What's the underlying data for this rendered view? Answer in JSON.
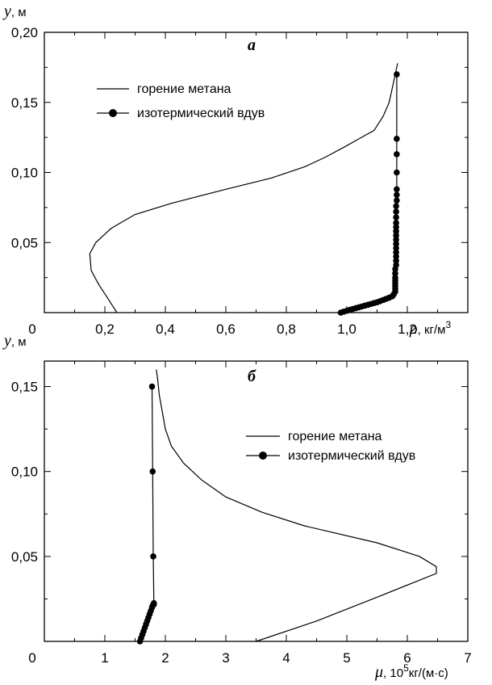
{
  "chart_data": [
    {
      "type": "line",
      "panel_label": "а",
      "ylabel_symbol": "y",
      "ylabel_unit": ", м",
      "xlabel_symbol": "ρ",
      "xlabel_unit": ", кг/м",
      "xlabel_unit_sup": "3",
      "xlim": [
        0,
        1.4
      ],
      "ylim": [
        0,
        0.2
      ],
      "x_ticks": [
        "0",
        "0,2",
        "0,4",
        "0,6",
        "0,8",
        "1,0",
        "1,2"
      ],
      "x_tick_values": [
        0,
        0.2,
        0.4,
        0.6,
        0.8,
        1.0,
        1.2
      ],
      "y_ticks": [
        "0,05",
        "0,10",
        "0,15",
        "0,20"
      ],
      "y_tick_values": [
        0.05,
        0.1,
        0.15,
        0.2
      ],
      "legend": "top-left",
      "series": [
        {
          "name": "горение метана",
          "marker": "none",
          "color": "#000000",
          "x": [
            0.24,
            0.21,
            0.18,
            0.155,
            0.15,
            0.17,
            0.22,
            0.3,
            0.42,
            0.6,
            0.75,
            0.86,
            0.93,
            0.99,
            1.04,
            1.09,
            1.12,
            1.14,
            1.15,
            1.16,
            1.168
          ],
          "y": [
            0.0,
            0.01,
            0.02,
            0.03,
            0.042,
            0.05,
            0.06,
            0.07,
            0.078,
            0.088,
            0.096,
            0.104,
            0.111,
            0.118,
            0.124,
            0.13,
            0.14,
            0.15,
            0.16,
            0.17,
            0.178
          ]
        },
        {
          "name": "изотермический вдув",
          "marker": "circle",
          "color": "#000000",
          "x": [
            0.98,
            0.99,
            1.0,
            1.01,
            1.02,
            1.03,
            1.04,
            1.05,
            1.06,
            1.07,
            1.08,
            1.09,
            1.1,
            1.11,
            1.12,
            1.13,
            1.14,
            1.15,
            1.155,
            1.16,
            1.16,
            1.16,
            1.16,
            1.16,
            1.16,
            1.16,
            1.16,
            1.163,
            1.163,
            1.163,
            1.163,
            1.163,
            1.163,
            1.163,
            1.163,
            1.163,
            1.163,
            1.163,
            1.163,
            1.163,
            1.163,
            1.165,
            1.165,
            1.165,
            1.165,
            1.165,
            1.165,
            1.165
          ],
          "y": [
            0.0,
            0.0007,
            0.0013,
            0.002,
            0.0026,
            0.0032,
            0.0038,
            0.0044,
            0.005,
            0.0056,
            0.0062,
            0.0068,
            0.0074,
            0.0082,
            0.009,
            0.0098,
            0.0106,
            0.0116,
            0.013,
            0.015,
            0.017,
            0.019,
            0.021,
            0.023,
            0.025,
            0.028,
            0.031,
            0.034,
            0.037,
            0.04,
            0.043,
            0.046,
            0.049,
            0.052,
            0.055,
            0.058,
            0.061,
            0.064,
            0.068,
            0.072,
            0.076,
            0.08,
            0.084,
            0.088,
            0.1,
            0.113,
            0.124,
            0.17
          ]
        }
      ]
    },
    {
      "type": "line",
      "panel_label": "б",
      "ylabel_symbol": "y",
      "ylabel_unit": ", м",
      "xlabel_symbol": "μ",
      "xlabel_unit": ", 10",
      "xlabel_unit_sup": "5",
      "xlabel_unit_tail": "кг/(м·с)",
      "xlim": [
        0,
        7
      ],
      "ylim": [
        0,
        0.165
      ],
      "x_ticks": [
        "0",
        "1",
        "2",
        "3",
        "4",
        "5",
        "6",
        "7"
      ],
      "x_tick_values": [
        0,
        1,
        2,
        3,
        4,
        5,
        6,
        7
      ],
      "y_ticks": [
        "0,05",
        "0,10",
        "0,15"
      ],
      "y_tick_values": [
        0.05,
        0.1,
        0.15
      ],
      "legend": "center-right",
      "series": [
        {
          "name": "горение метана",
          "marker": "none",
          "color": "#000000",
          "x": [
            3.5,
            4.5,
            5.5,
            6.2,
            6.48,
            6.48,
            6.2,
            5.5,
            4.3,
            3.6,
            3.0,
            2.6,
            2.3,
            2.1,
            2.0,
            1.95,
            1.9,
            1.87,
            1.85
          ],
          "y": [
            0.0,
            0.012,
            0.026,
            0.036,
            0.04,
            0.044,
            0.05,
            0.058,
            0.068,
            0.076,
            0.085,
            0.095,
            0.105,
            0.115,
            0.125,
            0.135,
            0.145,
            0.155,
            0.16
          ]
        },
        {
          "name": "изотермический вдув",
          "marker": "circle",
          "color": "#000000",
          "x": [
            1.58,
            1.6,
            1.62,
            1.64,
            1.66,
            1.68,
            1.7,
            1.72,
            1.74,
            1.76,
            1.78,
            1.79,
            1.8,
            1.81,
            1.81,
            1.81,
            1.8,
            1.79,
            1.78
          ],
          "y": [
            0.0,
            0.002,
            0.004,
            0.006,
            0.008,
            0.01,
            0.012,
            0.014,
            0.016,
            0.018,
            0.02,
            0.021,
            0.0215,
            0.0218,
            0.022,
            0.0225,
            0.05,
            0.1,
            0.15
          ]
        }
      ]
    }
  ]
}
